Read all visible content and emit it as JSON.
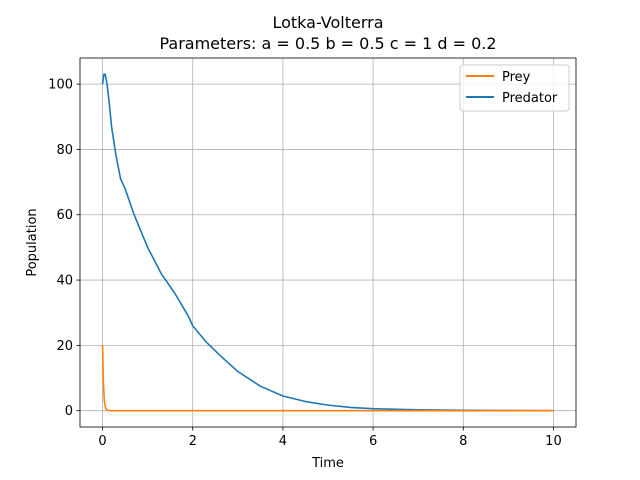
{
  "chart_data": {
    "type": "line",
    "title": "Lotka-Volterra",
    "subtitle": "Parameters: a = 0.5 b = 0.5 c = 1 d = 0.2",
    "xlabel": "Time",
    "ylabel": "Population",
    "xlim": [
      -0.5,
      10.5
    ],
    "ylim": [
      -5,
      108
    ],
    "xticks": [
      0,
      2,
      4,
      6,
      8,
      10
    ],
    "yticks": [
      0,
      20,
      40,
      60,
      80,
      100
    ],
    "grid": true,
    "legend_position": "upper right",
    "series": [
      {
        "name": "Prey",
        "color": "#ff7f0e",
        "x": [
          0,
          0.02,
          0.04,
          0.06,
          0.08,
          0.1,
          0.15,
          0.2,
          0.5,
          1,
          2,
          3,
          4,
          5,
          6,
          7,
          8,
          9,
          10
        ],
        "y": [
          20,
          8,
          3,
          1.2,
          0.5,
          0.2,
          0.05,
          0.01,
          0,
          0,
          0,
          0,
          0,
          0,
          0,
          0,
          0,
          0,
          0
        ]
      },
      {
        "name": "Predator",
        "color": "#1f77b4",
        "x": [
          0,
          0.03,
          0.06,
          0.1,
          0.15,
          0.2,
          0.3,
          0.4,
          0.5,
          0.7,
          1.0,
          1.3,
          1.6,
          1.9,
          2.0,
          2.3,
          2.6,
          3.0,
          3.5,
          4.0,
          4.5,
          5.0,
          5.5,
          6.0,
          7.0,
          8.0,
          9.0,
          10.0
        ],
        "y": [
          100,
          103,
          103,
          100,
          94,
          87,
          78,
          71,
          68,
          60,
          50,
          42,
          36,
          29,
          26,
          21,
          17,
          12,
          7.5,
          4.5,
          2.8,
          1.7,
          1.0,
          0.6,
          0.25,
          0.1,
          0.04,
          0.01
        ]
      }
    ]
  }
}
